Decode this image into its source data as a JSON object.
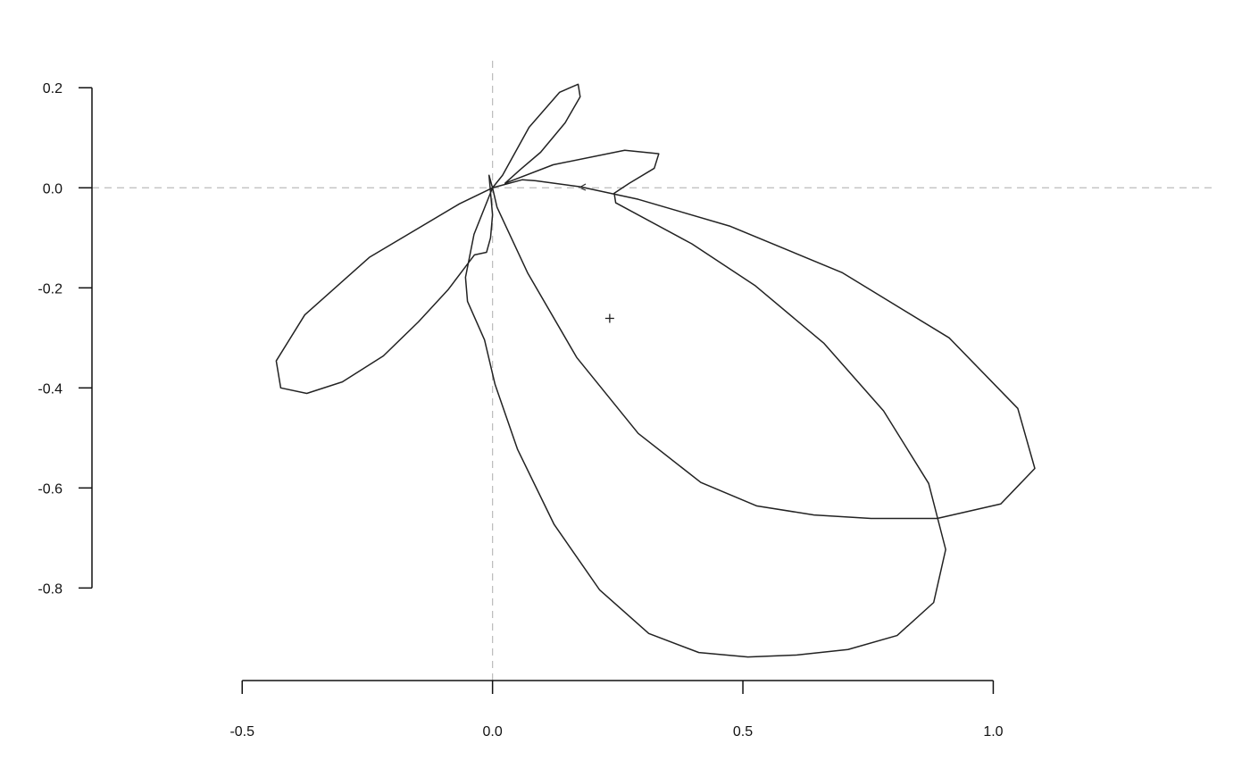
{
  "chart_data": {
    "type": "line",
    "xlim": [
      -0.8,
      1.445
    ],
    "ylim": [
      -0.985,
      0.254
    ],
    "xticks": [
      -0.5,
      {
        "value": 0,
        "label": "0.0"
      },
      0.5,
      {
        "value": 1,
        "label": "1.0"
      }
    ],
    "yticks": [
      0.2,
      {
        "value": 0,
        "label": "0.0"
      },
      -0.2,
      -0.4,
      -0.6,
      -0.8
    ],
    "hline": 0,
    "vline": 0,
    "marker_x": 0.234,
    "marker_y": -0.261,
    "x": [
      0,
      0.059,
      0.086,
      0.175,
      0.291,
      0.475,
      0.699,
      0.912,
      1.049,
      1.083,
      1.015,
      0.888,
      0.756,
      0.642,
      0.528,
      0.416,
      0.291,
      0.168,
      0.07,
      0.009,
      0,
      -0.066,
      -0.246,
      -0.375,
      -0.432,
      -0.423,
      -0.371,
      -0.3,
      -0.218,
      -0.148,
      -0.089,
      -0.036,
      -0.012,
      -0.004,
      0,
      -0.007,
      0,
      -0.037,
      -0.054,
      -0.05,
      -0.016,
      0.005,
      0.05,
      0.123,
      0.214,
      0.312,
      0.412,
      0.51,
      0.608,
      0.71,
      0.808,
      0.881,
      0.905,
      0.871,
      0.781,
      0.662,
      0.525,
      0.398,
      0.246,
      0.243,
      0.273,
      0.323,
      0.332,
      0.264,
      0.121,
      0.025,
      0.055,
      0.096,
      0.145,
      0.175,
      0.171,
      0.134,
      0.073,
      0.02,
      0
    ],
    "series": [
      {
        "color": "#222222",
        "values": [
          0,
          0.016,
          0.014,
          0.002,
          -0.023,
          -0.077,
          -0.17,
          -0.3,
          -0.441,
          -0.561,
          -0.632,
          -0.661,
          -0.661,
          -0.654,
          -0.636,
          -0.589,
          -0.491,
          -0.339,
          -0.17,
          -0.039,
          0,
          -0.032,
          -0.139,
          -0.254,
          -0.346,
          -0.4,
          -0.411,
          -0.388,
          -0.336,
          -0.268,
          -0.204,
          -0.134,
          -0.129,
          -0.1,
          -0.054,
          0.025,
          0,
          -0.093,
          -0.179,
          -0.227,
          -0.304,
          -0.393,
          -0.523,
          -0.673,
          -0.804,
          -0.891,
          -0.929,
          -0.938,
          -0.934,
          -0.923,
          -0.895,
          -0.829,
          -0.723,
          -0.591,
          -0.446,
          -0.311,
          -0.196,
          -0.112,
          -0.03,
          -0.011,
          0.009,
          0.039,
          0.068,
          0.075,
          0.046,
          0.009,
          0.036,
          0.071,
          0.13,
          0.182,
          0.207,
          0.191,
          0.121,
          0.025,
          0
        ]
      }
    ]
  }
}
